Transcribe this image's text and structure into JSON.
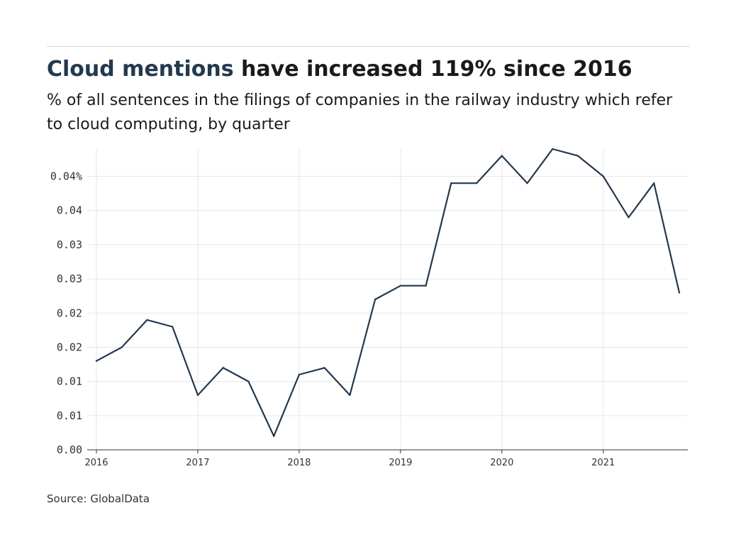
{
  "header": {
    "title_highlight": "Cloud mentions",
    "title_rest": " have increased 119% since 2016",
    "subtitle": "% of all sentences in the filings of companies in the railway industry which refer to cloud computing, by quarter"
  },
  "footer": {
    "source": "Source: GlobalData"
  },
  "colors": {
    "line": "#24384e",
    "highlight": "#24384e",
    "grid": "#e6e6e6",
    "axis": "#333333"
  },
  "chart_data": {
    "type": "line",
    "title": "Cloud mentions have increased 119% since 2016",
    "subtitle": "% of all sentences in the filings of companies in the railway industry which refer to cloud computing, by quarter",
    "xlabel": "",
    "ylabel": "",
    "x_ticks": [
      "2016",
      "2017",
      "2018",
      "2019",
      "2020",
      "2021"
    ],
    "y_tick_labels": [
      "0.00",
      "0.01",
      "0.01",
      "0.02",
      "0.02",
      "0.03",
      "0.03",
      "0.04",
      "0.04%"
    ],
    "y_tick_values": [
      0,
      0.005,
      0.01,
      0.015,
      0.02,
      0.025,
      0.03,
      0.035,
      0.04
    ],
    "ylim": [
      0,
      0.044
    ],
    "grid": true,
    "series": [
      {
        "x": [
          "2016-Q1",
          "2016-Q2",
          "2016-Q3",
          "2016-Q4",
          "2017-Q1",
          "2017-Q2",
          "2017-Q3",
          "2017-Q4",
          "2018-Q1",
          "2018-Q2",
          "2018-Q3",
          "2018-Q4",
          "2019-Q1",
          "2019-Q2",
          "2019-Q3",
          "2019-Q4",
          "2020-Q1",
          "2020-Q2",
          "2020-Q3",
          "2020-Q4",
          "2021-Q1",
          "2021-Q2",
          "2021-Q3",
          "2021-Q4"
        ],
        "values": [
          0.013,
          0.015,
          0.019,
          0.018,
          0.008,
          0.012,
          0.01,
          0.002,
          0.011,
          0.012,
          0.008,
          0.022,
          0.024,
          0.024,
          0.039,
          0.039,
          0.043,
          0.039,
          0.044,
          0.043,
          0.04,
          0.034,
          0.039,
          0.023
        ]
      }
    ]
  }
}
